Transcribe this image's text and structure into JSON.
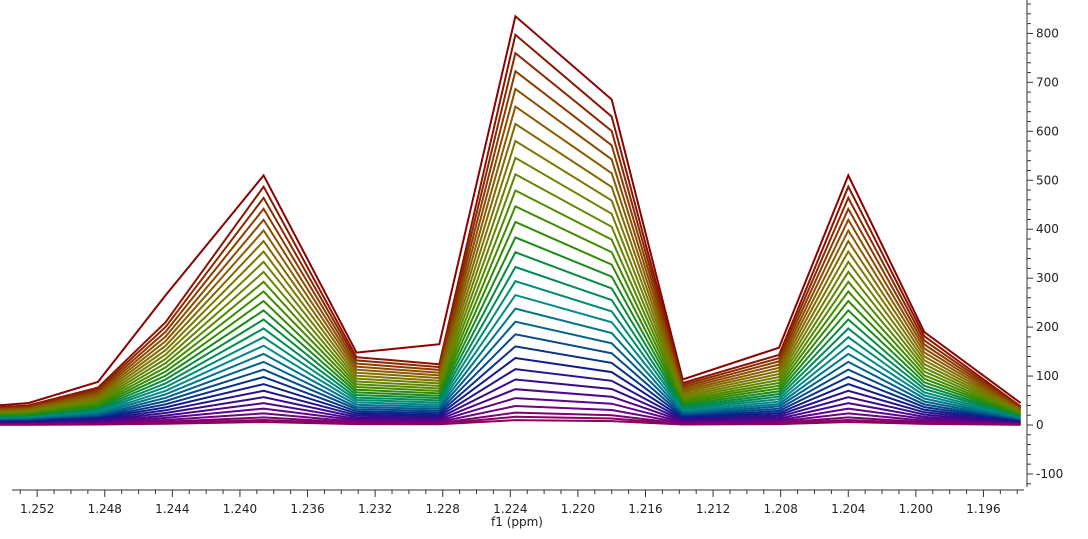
{
  "chart_data": {
    "type": "line",
    "xlabel": "f1 (ppm)",
    "ylabel": "",
    "xlim": [
      1.2542,
      1.1936
    ],
    "ylim": [
      -125,
      860
    ],
    "x_ticks": [
      "1.252",
      "1.248",
      "1.244",
      "1.240",
      "1.236",
      "1.232",
      "1.228",
      "1.224",
      "1.220",
      "1.216",
      "1.212",
      "1.208",
      "1.204",
      "1.200",
      "1.196"
    ],
    "y_ticks": [
      "-100",
      "0",
      "100",
      "200",
      "300",
      "400",
      "500",
      "600",
      "700",
      "800"
    ],
    "x": [
      1.2543,
      1.2525,
      1.2484,
      1.2444,
      1.2386,
      1.2331,
      1.2282,
      1.2237,
      1.218,
      1.2138,
      1.2081,
      1.204,
      1.1995,
      1.1938
    ],
    "peaks": [
      40,
      45,
      88,
      265,
      510,
      148,
      165,
      835,
      665,
      93,
      158,
      510,
      190,
      45
    ],
    "shape_top": [
      38,
      42,
      80,
      220,
      510,
      145,
      130,
      835,
      660,
      90,
      150,
      510,
      190,
      40
    ],
    "traces": 30,
    "grid": false,
    "legend": "none",
    "palette": [
      "#8b0000",
      "#8b3000",
      "#8b5a00",
      "#7a7a00",
      "#5a8a00",
      "#2e8b00",
      "#008b4a",
      "#008b8b",
      "#005a8b",
      "#0a1f8b",
      "#3a0a8b",
      "#6a008b",
      "#8b0060"
    ]
  }
}
